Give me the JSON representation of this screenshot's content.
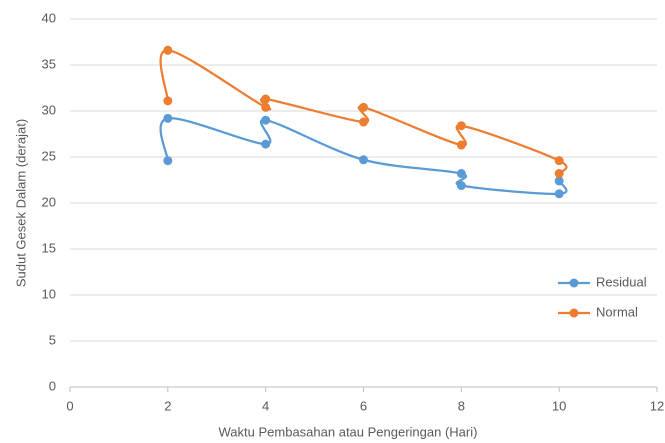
{
  "chart_data": {
    "type": "scatter-line",
    "x_label": "Waktu Pembasahan atau Pengeringan (Hari)",
    "y_label": "Sudut Gesek Dalam (derajat)",
    "xlim": [
      0,
      12
    ],
    "xticks": [
      0,
      2,
      4,
      6,
      8,
      10,
      12
    ],
    "ylim": [
      0,
      40
    ],
    "yticks": [
      0,
      5,
      10,
      15,
      20,
      25,
      30,
      35,
      40
    ],
    "grid": true,
    "legend": "right",
    "series": [
      {
        "name": "Residual",
        "color": "#5b9bd5",
        "x": [
          2,
          2,
          4,
          4,
          6,
          8,
          8,
          10,
          10
        ],
        "values": [
          24.6,
          29.2,
          26.4,
          29.0,
          24.7,
          23.2,
          21.9,
          21.0,
          22.4
        ]
      },
      {
        "name": "Normal",
        "color": "#ed7d31",
        "x": [
          2,
          2,
          4,
          4,
          6,
          6,
          8,
          8,
          10,
          10
        ],
        "values": [
          31.1,
          36.6,
          30.4,
          31.3,
          28.8,
          30.4,
          26.3,
          28.4,
          24.6,
          23.2
        ]
      }
    ]
  }
}
